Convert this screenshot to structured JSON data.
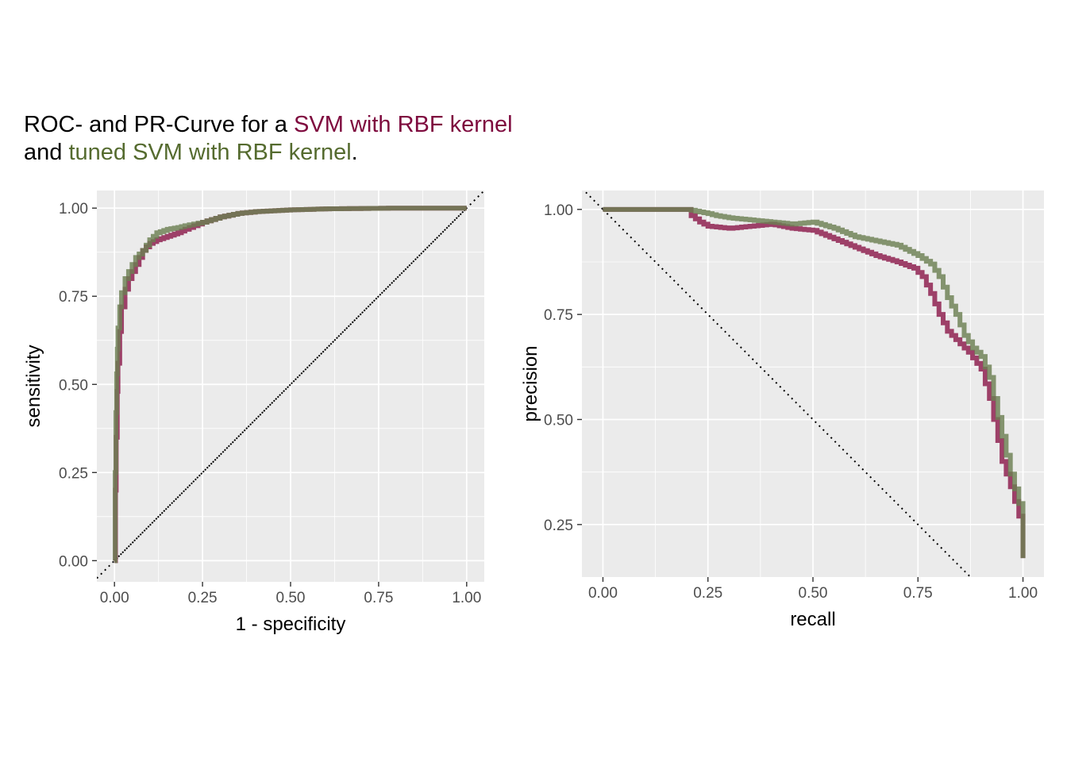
{
  "title": {
    "line1_prefix": "ROC- and PR-Curve for a ",
    "line1_highlight": "SVM with RBF kernel",
    "line2_prefix": "and ",
    "line2_highlight": "tuned SVM with RBF kernel",
    "line2_suffix": "."
  },
  "colors": {
    "svm": "#8B1A4A",
    "tuned_svm": "#6B7F52",
    "panel_bg": "#EBEBEB",
    "grid": "#FFFFFF",
    "svm_title": "#7E0A3E",
    "tuned_title": "#556B2F"
  },
  "chart_data": [
    {
      "type": "line",
      "xlabel": "1 - specificity",
      "ylabel": "sensitivity",
      "xlim": [
        -0.05,
        1.05
      ],
      "ylim": [
        -0.06,
        1.05
      ],
      "xticks": [
        0,
        0.25,
        0.5,
        0.75,
        1
      ],
      "xtick_labels": [
        "0.00",
        "0.25",
        "0.50",
        "0.75",
        "1.00"
      ],
      "yticks": [
        0,
        0.25,
        0.5,
        0.75,
        1
      ],
      "ytick_labels": [
        "0.00",
        "0.25",
        "0.50",
        "0.75",
        "1.00"
      ],
      "reference_line": {
        "from": [
          0,
          0
        ],
        "to": [
          1,
          1
        ],
        "style": "dotted"
      },
      "series": [
        {
          "key": "svm",
          "x": [
            0,
            0.003,
            0.005,
            0.008,
            0.01,
            0.015,
            0.02,
            0.03,
            0.04,
            0.05,
            0.06,
            0.07,
            0.08,
            0.1,
            0.12,
            0.15,
            0.18,
            0.2,
            0.25,
            0.3,
            0.35,
            0.4,
            0.5,
            0.6,
            0.7,
            0.8,
            0.9,
            1.0
          ],
          "y": [
            0,
            0.2,
            0.35,
            0.48,
            0.56,
            0.65,
            0.72,
            0.77,
            0.8,
            0.82,
            0.84,
            0.86,
            0.88,
            0.9,
            0.91,
            0.92,
            0.93,
            0.94,
            0.96,
            0.975,
            0.985,
            0.99,
            0.995,
            0.998,
            0.999,
            1.0,
            1.0,
            1.0
          ]
        },
        {
          "key": "tuned_svm",
          "x": [
            0,
            0.002,
            0.004,
            0.006,
            0.008,
            0.01,
            0.015,
            0.02,
            0.03,
            0.04,
            0.05,
            0.06,
            0.08,
            0.1,
            0.12,
            0.15,
            0.18,
            0.2,
            0.25,
            0.3,
            0.35,
            0.4,
            0.5,
            0.6,
            0.7,
            0.8,
            0.9,
            1.0
          ],
          "y": [
            0,
            0.25,
            0.42,
            0.53,
            0.6,
            0.66,
            0.72,
            0.76,
            0.8,
            0.82,
            0.84,
            0.86,
            0.88,
            0.91,
            0.93,
            0.94,
            0.945,
            0.95,
            0.96,
            0.975,
            0.985,
            0.99,
            0.995,
            0.998,
            0.999,
            1.0,
            1.0,
            1.0
          ]
        }
      ]
    },
    {
      "type": "line",
      "xlabel": "recall",
      "ylabel": "precision",
      "xlim": [
        -0.05,
        1.05
      ],
      "ylim": [
        0.125,
        1.045
      ],
      "xticks": [
        0,
        0.25,
        0.5,
        0.75,
        1
      ],
      "xtick_labels": [
        "0.00",
        "0.25",
        "0.50",
        "0.75",
        "1.00"
      ],
      "yticks": [
        0.25,
        0.5,
        0.75,
        1
      ],
      "ytick_labels": [
        "0.25",
        "0.50",
        "0.75",
        "1.00"
      ],
      "reference_line": {
        "from": [
          0,
          1
        ],
        "to": [
          0.875,
          0.125
        ],
        "style": "dotted"
      },
      "series": [
        {
          "key": "svm",
          "x": [
            0,
            0.1,
            0.2,
            0.21,
            0.23,
            0.25,
            0.3,
            0.35,
            0.4,
            0.45,
            0.5,
            0.55,
            0.6,
            0.65,
            0.7,
            0.74,
            0.76,
            0.78,
            0.8,
            0.82,
            0.85,
            0.87,
            0.9,
            0.92,
            0.93,
            0.95,
            0.97,
            0.99,
            1.0
          ],
          "y": [
            1.0,
            1.0,
            1.0,
            0.985,
            0.97,
            0.96,
            0.955,
            0.96,
            0.965,
            0.955,
            0.95,
            0.93,
            0.91,
            0.89,
            0.875,
            0.86,
            0.84,
            0.8,
            0.75,
            0.71,
            0.68,
            0.66,
            0.62,
            0.55,
            0.5,
            0.4,
            0.34,
            0.27,
            0.17
          ]
        },
        {
          "key": "tuned_svm",
          "x": [
            0,
            0.1,
            0.2,
            0.25,
            0.27,
            0.3,
            0.35,
            0.4,
            0.45,
            0.5,
            0.55,
            0.6,
            0.65,
            0.7,
            0.75,
            0.78,
            0.8,
            0.82,
            0.84,
            0.86,
            0.88,
            0.9,
            0.92,
            0.93,
            0.95,
            0.97,
            0.99,
            1.0
          ],
          "y": [
            1.0,
            1.0,
            1.0,
            0.99,
            0.985,
            0.98,
            0.975,
            0.97,
            0.965,
            0.97,
            0.955,
            0.935,
            0.925,
            0.915,
            0.89,
            0.87,
            0.84,
            0.79,
            0.75,
            0.7,
            0.67,
            0.65,
            0.6,
            0.55,
            0.46,
            0.37,
            0.3,
            0.17
          ]
        }
      ]
    }
  ]
}
